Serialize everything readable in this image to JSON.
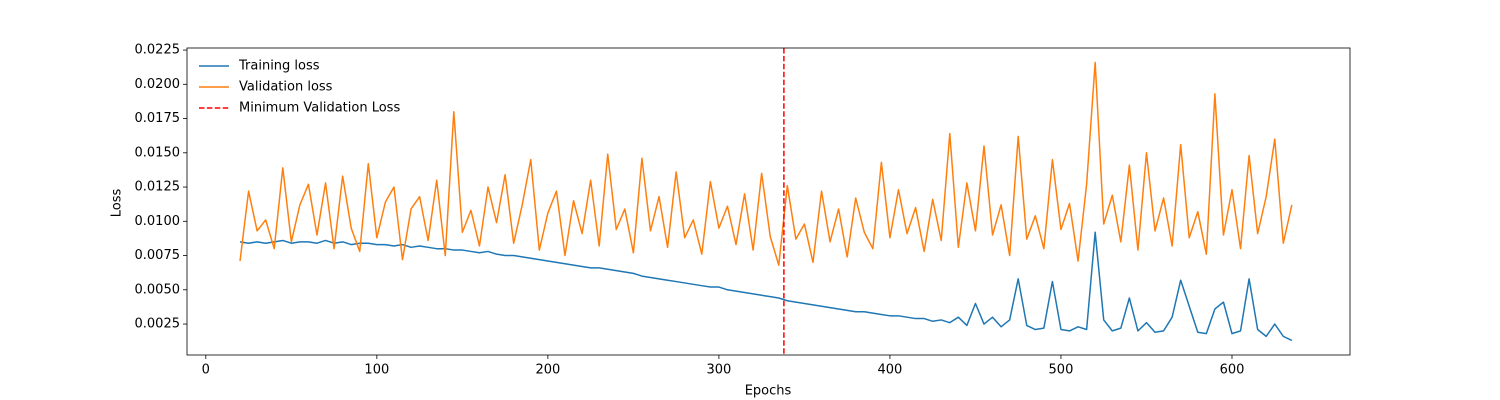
{
  "chart_data": {
    "type": "line",
    "xlabel": "Epochs",
    "ylabel": "Loss",
    "legend": "upper left",
    "x": [
      20,
      25,
      30,
      35,
      40,
      45,
      50,
      55,
      60,
      65,
      70,
      75,
      80,
      85,
      90,
      95,
      100,
      105,
      110,
      115,
      120,
      125,
      130,
      135,
      140,
      145,
      150,
      155,
      160,
      165,
      170,
      175,
      180,
      185,
      190,
      195,
      200,
      205,
      210,
      215,
      220,
      225,
      230,
      235,
      240,
      245,
      250,
      255,
      260,
      265,
      270,
      275,
      280,
      285,
      290,
      295,
      300,
      305,
      310,
      315,
      320,
      325,
      330,
      335,
      340,
      345,
      350,
      355,
      360,
      365,
      370,
      375,
      380,
      385,
      390,
      395,
      400,
      405,
      410,
      415,
      420,
      425,
      430,
      435,
      440,
      445,
      450,
      455,
      460,
      465,
      470,
      475,
      480,
      485,
      490,
      495,
      500,
      505,
      510,
      515,
      520,
      525,
      530,
      535,
      540,
      545,
      550,
      555,
      560,
      565,
      570,
      575,
      580,
      585,
      590,
      595,
      600,
      605,
      610,
      615,
      620,
      625,
      630,
      635
    ],
    "series": [
      {
        "name": "Training loss",
        "color": "#1f77b4",
        "values": [
          0.0085,
          0.0084,
          0.0085,
          0.0084,
          0.0085,
          0.0086,
          0.0084,
          0.0085,
          0.0085,
          0.0084,
          0.0086,
          0.0084,
          0.0085,
          0.0083,
          0.0084,
          0.0084,
          0.0083,
          0.0083,
          0.0082,
          0.0083,
          0.0081,
          0.0082,
          0.0081,
          0.008,
          0.008,
          0.0079,
          0.0079,
          0.0078,
          0.0077,
          0.0078,
          0.0076,
          0.0075,
          0.0075,
          0.0074,
          0.0073,
          0.0072,
          0.0071,
          0.007,
          0.0069,
          0.0068,
          0.0067,
          0.0066,
          0.0066,
          0.0065,
          0.0064,
          0.0063,
          0.0062,
          0.006,
          0.0059,
          0.0058,
          0.0057,
          0.0056,
          0.0055,
          0.0054,
          0.0053,
          0.0052,
          0.0052,
          0.005,
          0.0049,
          0.0048,
          0.0047,
          0.0046,
          0.0045,
          0.0044,
          0.0042,
          0.0041,
          0.004,
          0.0039,
          0.0038,
          0.0037,
          0.0036,
          0.0035,
          0.0034,
          0.0034,
          0.0033,
          0.0032,
          0.0031,
          0.0031,
          0.003,
          0.0029,
          0.0029,
          0.0027,
          0.0028,
          0.0026,
          0.003,
          0.0024,
          0.004,
          0.0025,
          0.003,
          0.0023,
          0.0028,
          0.0058,
          0.0024,
          0.0021,
          0.0022,
          0.0056,
          0.0021,
          0.002,
          0.0023,
          0.0021,
          0.0092,
          0.0028,
          0.002,
          0.0022,
          0.0044,
          0.002,
          0.0026,
          0.0019,
          0.002,
          0.003,
          0.0057,
          0.0038,
          0.0019,
          0.0018,
          0.0036,
          0.0041,
          0.0018,
          0.002,
          0.0058,
          0.0021,
          0.0016,
          0.0025,
          0.0016,
          0.0013
        ]
      },
      {
        "name": "Validation loss",
        "color": "#ff7f0e",
        "values": [
          0.0071,
          0.0122,
          0.0093,
          0.0101,
          0.008,
          0.0139,
          0.0085,
          0.0112,
          0.0127,
          0.009,
          0.0128,
          0.008,
          0.0133,
          0.0095,
          0.0078,
          0.0142,
          0.0088,
          0.0114,
          0.0125,
          0.0072,
          0.0109,
          0.0118,
          0.0086,
          0.013,
          0.0075,
          0.018,
          0.0092,
          0.0108,
          0.0082,
          0.0125,
          0.0099,
          0.0134,
          0.0084,
          0.0112,
          0.0145,
          0.0079,
          0.0106,
          0.0122,
          0.0075,
          0.0115,
          0.0091,
          0.013,
          0.0082,
          0.0149,
          0.0094,
          0.0109,
          0.0077,
          0.0146,
          0.0093,
          0.0118,
          0.0081,
          0.0136,
          0.0088,
          0.0101,
          0.0076,
          0.0129,
          0.0095,
          0.0111,
          0.0083,
          0.012,
          0.0079,
          0.0135,
          0.0089,
          0.0068,
          0.0126,
          0.0087,
          0.0098,
          0.007,
          0.0122,
          0.0085,
          0.0109,
          0.0074,
          0.0117,
          0.0092,
          0.008,
          0.0143,
          0.0088,
          0.0123,
          0.0091,
          0.011,
          0.0078,
          0.0116,
          0.0086,
          0.0164,
          0.0081,
          0.0128,
          0.0093,
          0.0155,
          0.009,
          0.0112,
          0.0075,
          0.0162,
          0.0087,
          0.0104,
          0.008,
          0.0145,
          0.0094,
          0.0113,
          0.0071,
          0.0127,
          0.0216,
          0.0098,
          0.0119,
          0.0085,
          0.0141,
          0.0079,
          0.015,
          0.0093,
          0.0117,
          0.0082,
          0.0156,
          0.0088,
          0.0107,
          0.0076,
          0.0193,
          0.009,
          0.0123,
          0.008,
          0.0148,
          0.0091,
          0.0118,
          0.016,
          0.0084,
          0.0112
        ]
      }
    ],
    "vline": {
      "name": "Minimum Validation Loss",
      "x": 338,
      "color": "#ff0000",
      "dashed": true
    },
    "xlim": [
      -11,
      669
    ],
    "ylim": [
      0.00024,
      0.02265
    ],
    "xticks": [
      0,
      100,
      200,
      300,
      400,
      500,
      600
    ],
    "yticks": [
      0.0025,
      {
        "value": 0.005,
        "label": "0.0050"
      },
      0.0075,
      {
        "value": 0.01,
        "label": "0.0100"
      },
      0.0125,
      {
        "value": 0.015,
        "label": "0.0150"
      },
      0.0175,
      {
        "value": 0.02,
        "label": "0.0200"
      },
      0.0225
    ]
  }
}
